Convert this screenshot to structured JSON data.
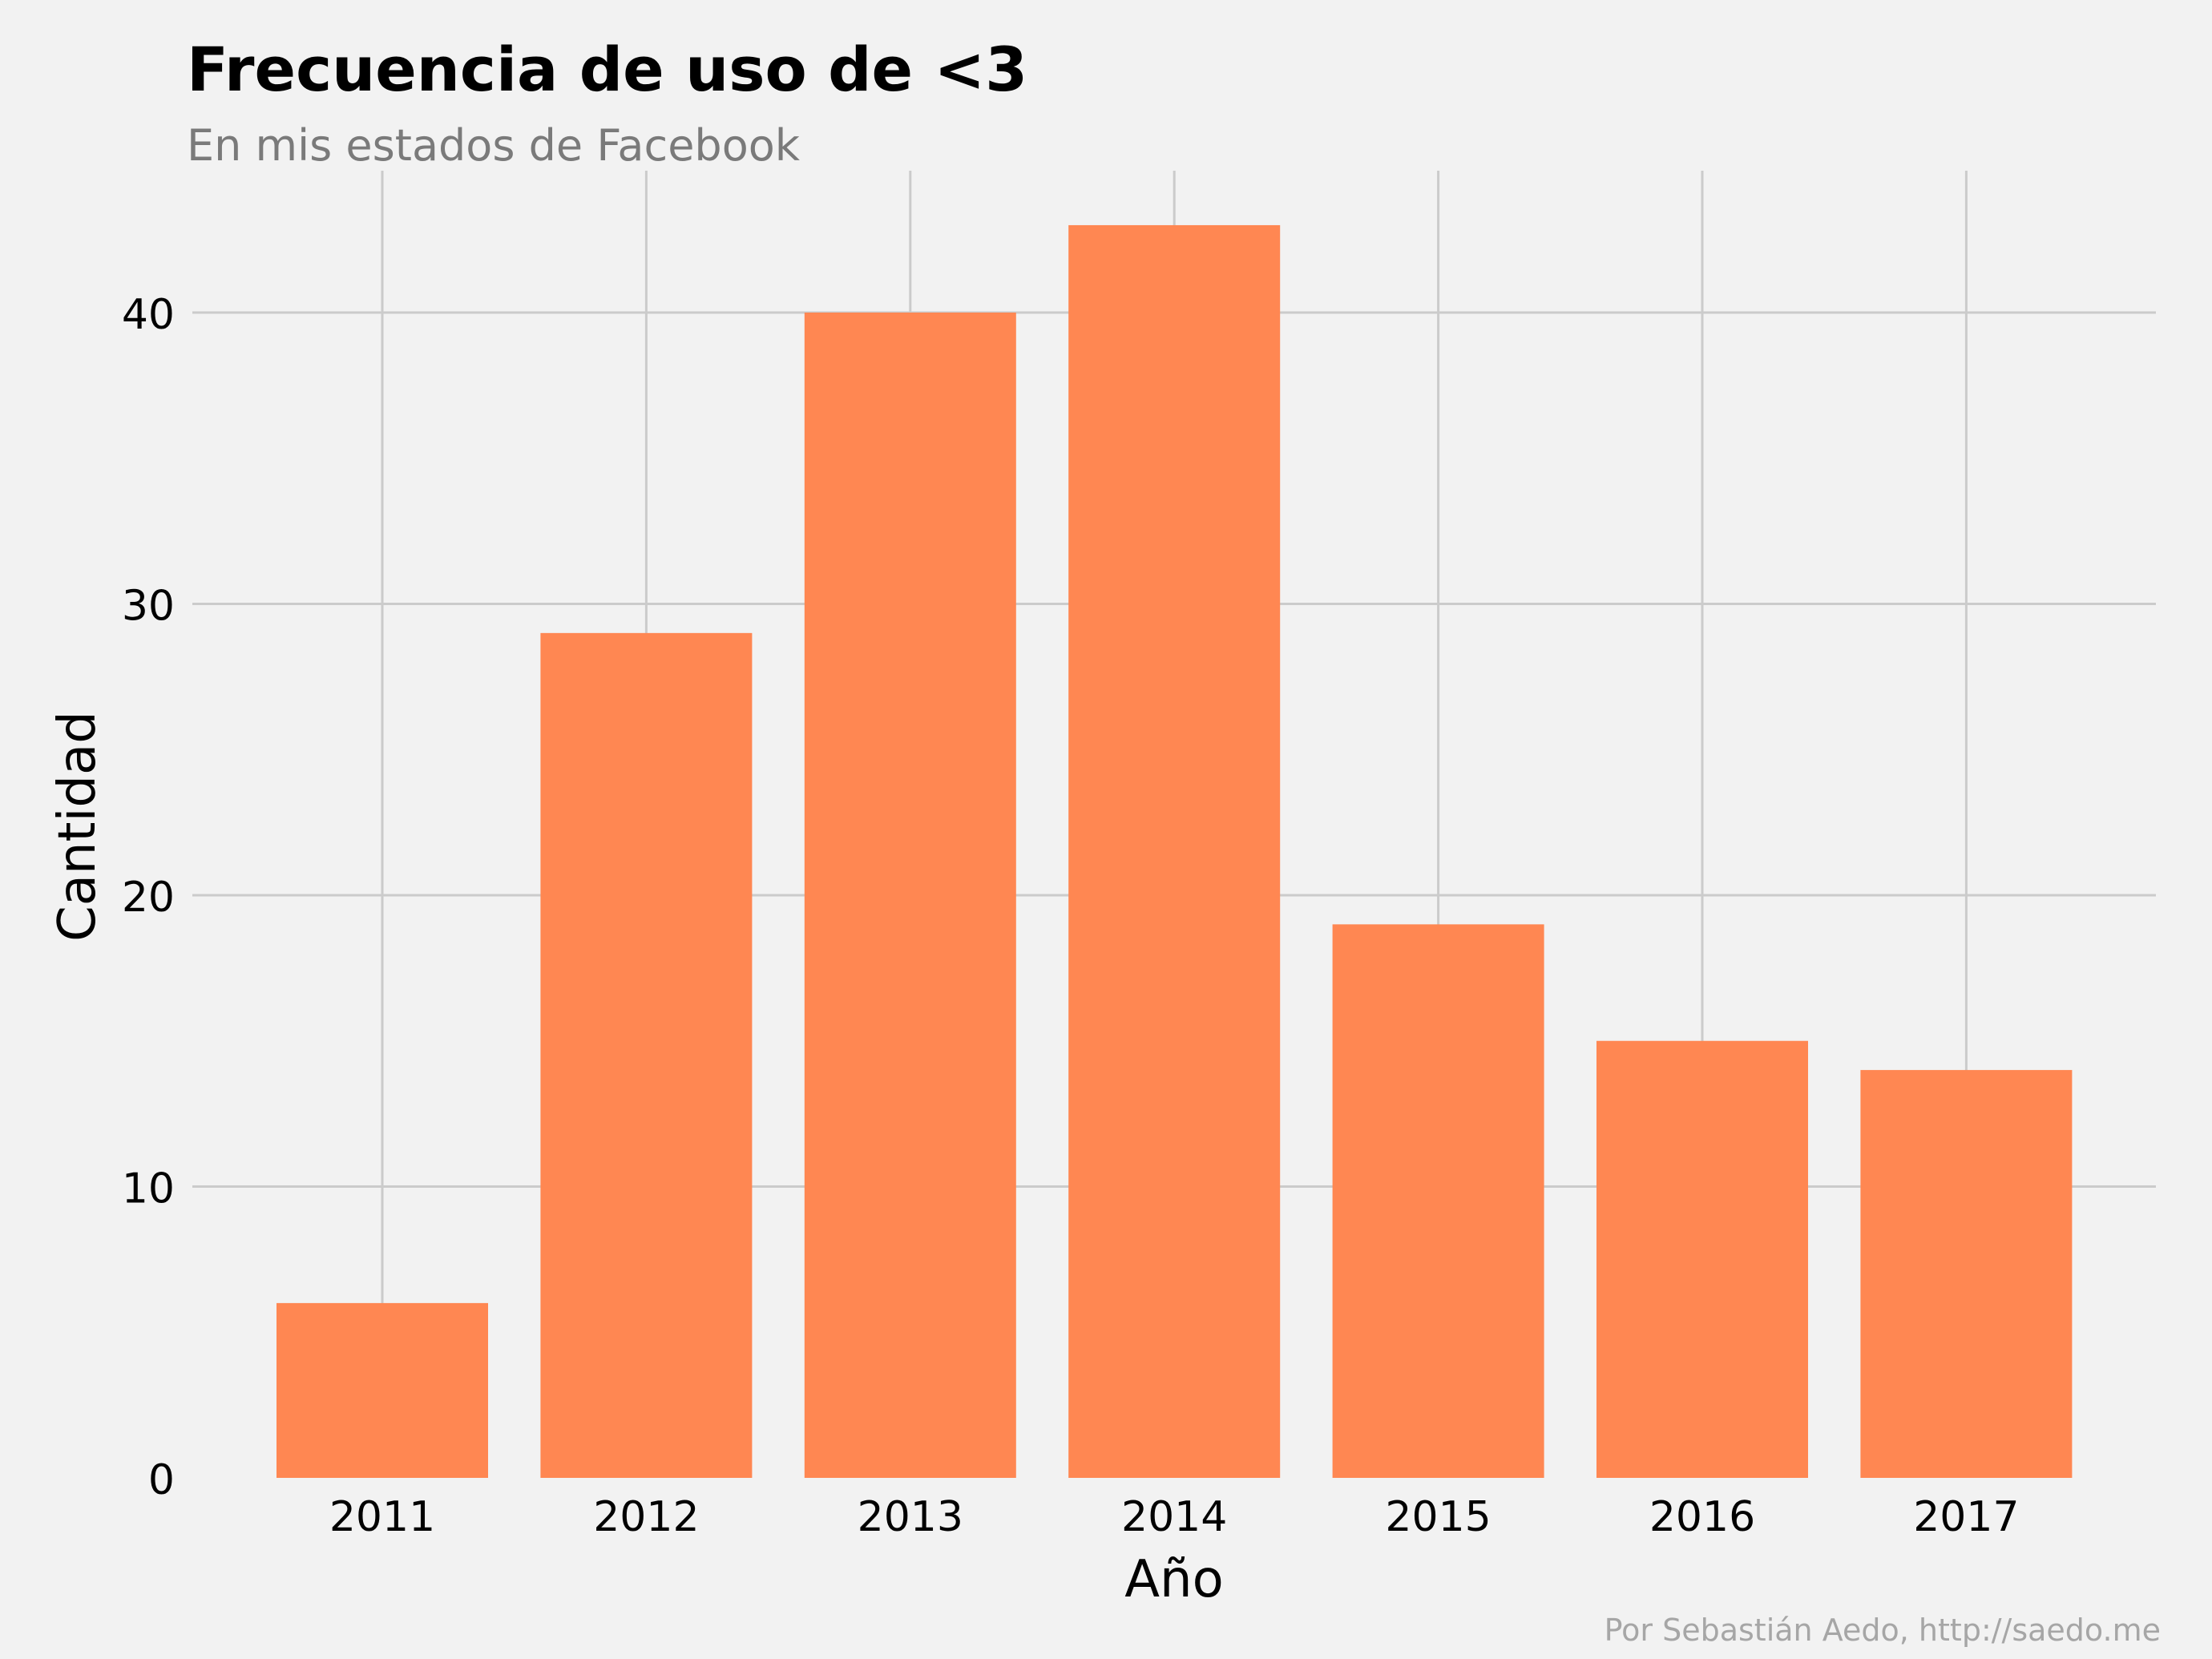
{
  "title": "Frecuencia de uso de <3",
  "subtitle": "En mis estados de Facebook",
  "caption": "Por Sebastián Aedo, http://saedo.me",
  "colors": {
    "background": "#f2f2f2",
    "bar": "#ff8752",
    "grid": "#cbcbcb",
    "text": "#000000",
    "subtitle": "#7a7a7a",
    "caption": "#a6a6a6"
  },
  "chart_data": {
    "type": "bar",
    "categories": [
      "2011",
      "2012",
      "2013",
      "2014",
      "2015",
      "2016",
      "2017"
    ],
    "values": [
      6,
      29,
      40,
      43,
      19,
      15,
      14
    ],
    "xlabel": "Año",
    "ylabel": "Cantidad",
    "ylim": [
      0,
      45
    ],
    "yticks": [
      "0",
      "10",
      "20",
      "30",
      "40"
    ],
    "grid": true,
    "legend": "none"
  }
}
